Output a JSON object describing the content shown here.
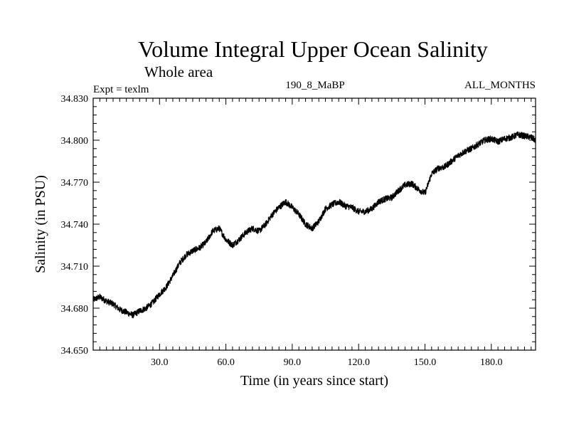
{
  "chart_data": {
    "type": "line",
    "title": "Volume Integral Upper Ocean Salinity",
    "subtitle": "Whole area",
    "annotations": {
      "experiment": "Expt = texlm",
      "run": "190_8_MaBP",
      "months": "ALL_MONTHS"
    },
    "xlabel": "Time (in years since start)",
    "ylabel": "Salinity (in PSU)",
    "xlim": [
      0,
      200
    ],
    "ylim": [
      34.65,
      34.83
    ],
    "xticks": [
      30,
      60,
      90,
      120,
      150,
      180
    ],
    "xtick_labels": [
      "30.0",
      "60.0",
      "90.0",
      "120.0",
      "150.0",
      "180.0"
    ],
    "yticks": [
      34.65,
      34.68,
      34.71,
      34.74,
      34.77,
      34.8,
      34.83
    ],
    "ytick_labels": [
      "34.650",
      "34.680",
      "34.710",
      "34.740",
      "34.770",
      "34.800",
      "34.830"
    ],
    "grid": false,
    "series": [
      {
        "name": "Salinity",
        "color": "#000000",
        "x": [
          0,
          3,
          6,
          9,
          12,
          15,
          18,
          21,
          24,
          27,
          30,
          33,
          36,
          39,
          42,
          45,
          48,
          51,
          54,
          57,
          60,
          63,
          66,
          69,
          72,
          75,
          78,
          81,
          84,
          87,
          90,
          93,
          96,
          99,
          102,
          105,
          108,
          111,
          114,
          117,
          120,
          123,
          126,
          129,
          132,
          135,
          138,
          141,
          144,
          147,
          150,
          153,
          156,
          159,
          162,
          165,
          168,
          171,
          174,
          177,
          180,
          183,
          186,
          189,
          192,
          195,
          198,
          200
        ],
        "values": [
          34.686,
          34.688,
          34.685,
          34.683,
          34.679,
          34.677,
          34.675,
          34.678,
          34.68,
          34.684,
          34.69,
          34.695,
          34.703,
          34.712,
          34.718,
          34.721,
          34.723,
          34.727,
          34.735,
          34.737,
          34.729,
          34.725,
          34.729,
          34.734,
          34.737,
          34.735,
          34.74,
          34.747,
          34.752,
          34.756,
          34.752,
          34.747,
          34.74,
          34.737,
          34.742,
          34.751,
          34.754,
          34.756,
          34.753,
          34.752,
          34.749,
          34.749,
          34.751,
          34.756,
          34.758,
          34.759,
          34.764,
          34.768,
          34.769,
          34.765,
          34.762,
          34.776,
          34.78,
          34.781,
          34.785,
          34.789,
          34.792,
          34.794,
          34.797,
          34.8,
          34.801,
          34.799,
          34.801,
          34.802,
          34.804,
          34.803,
          34.802,
          34.8
        ]
      }
    ]
  }
}
